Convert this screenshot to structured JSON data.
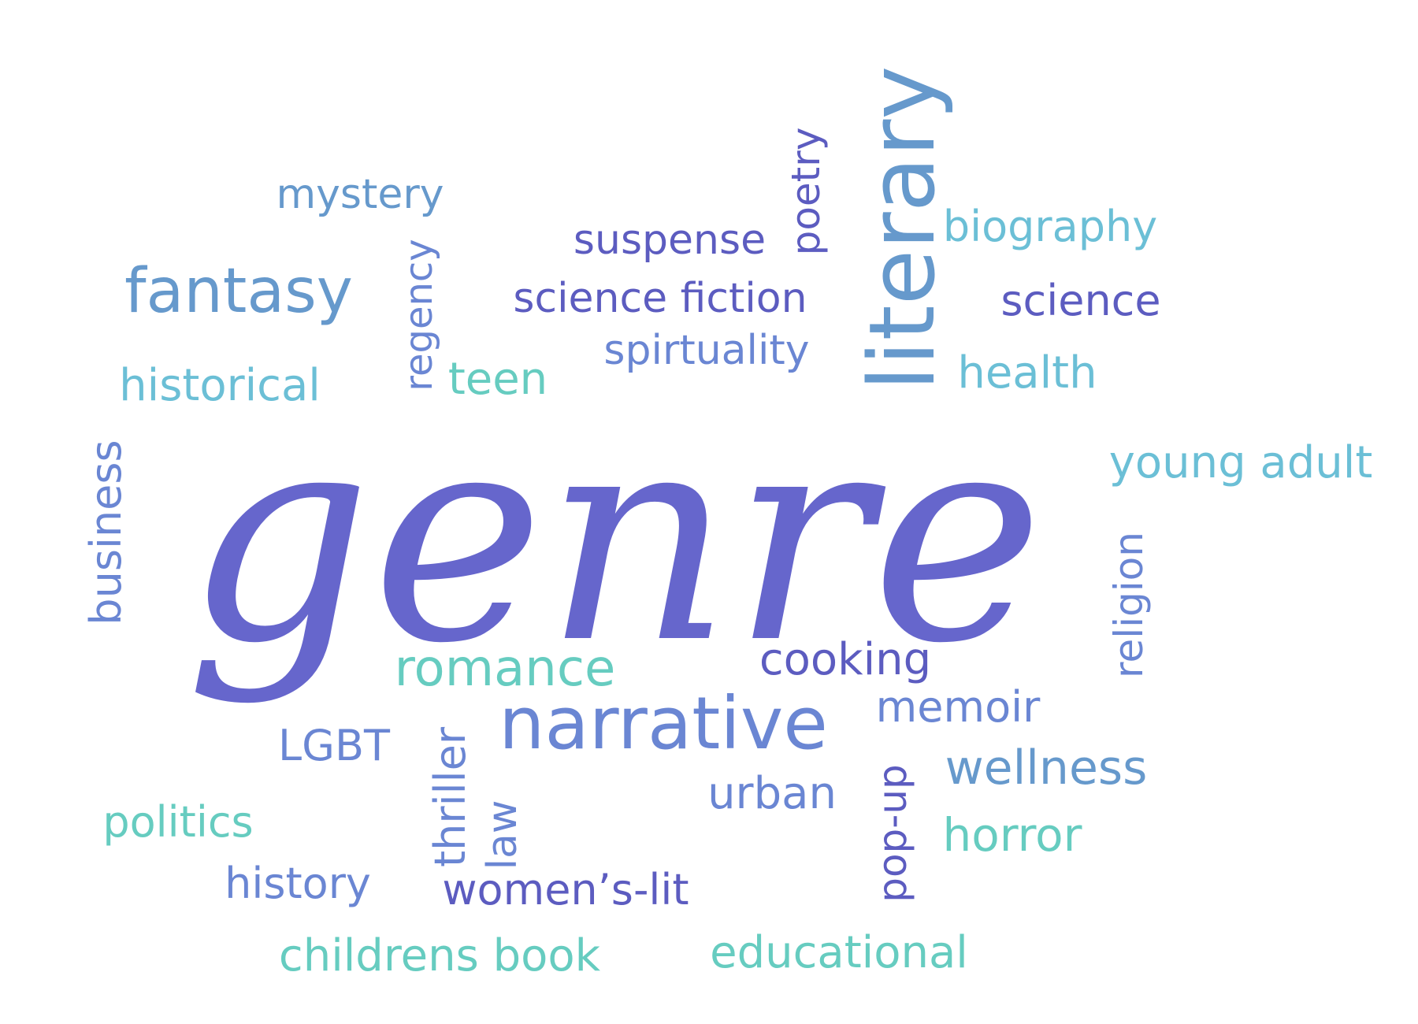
{
  "palette": {
    "indigo": "#6666cc",
    "steel": "#6699cc",
    "blue": "#6a86d3",
    "sky": "#6bbfd6",
    "teal": "#66ccc0",
    "purple": "#5c5cc0"
  },
  "words": [
    {
      "text": "genre",
      "color": "#6666cc"
    },
    {
      "text": "literary",
      "color": "#6699cc"
    },
    {
      "text": "narrative",
      "color": "#6a86d3"
    },
    {
      "text": "fantasy",
      "color": "#6699cc"
    },
    {
      "text": "romance",
      "color": "#66ccc0"
    },
    {
      "text": "mystery",
      "color": "#6699cc"
    },
    {
      "text": "suspense",
      "color": "#5c5cc0"
    },
    {
      "text": "science fiction",
      "color": "#5c5cc0"
    },
    {
      "text": "spirtuality",
      "color": "#6a86d3"
    },
    {
      "text": "poetry",
      "color": "#5c5cc0"
    },
    {
      "text": "regency",
      "color": "#6a86d3"
    },
    {
      "text": "biography",
      "color": "#6bbfd6"
    },
    {
      "text": "science",
      "color": "#5c5cc0"
    },
    {
      "text": "health",
      "color": "#6bbfd6"
    },
    {
      "text": "historical",
      "color": "#6bbfd6"
    },
    {
      "text": "teen",
      "color": "#66ccc0"
    },
    {
      "text": "young adult",
      "color": "#6bbfd6"
    },
    {
      "text": "business",
      "color": "#6a86d3"
    },
    {
      "text": "religion",
      "color": "#6a86d3"
    },
    {
      "text": "cooking",
      "color": "#5c5cc0"
    },
    {
      "text": "memoir",
      "color": "#6a86d3"
    },
    {
      "text": "wellness",
      "color": "#6699cc"
    },
    {
      "text": "LGBT",
      "color": "#6a86d3"
    },
    {
      "text": "thriller",
      "color": "#6a86d3"
    },
    {
      "text": "law",
      "color": "#6a86d3"
    },
    {
      "text": "urban",
      "color": "#6a86d3"
    },
    {
      "text": "pop-up",
      "color": "#5c5cc0"
    },
    {
      "text": "horror",
      "color": "#66ccc0"
    },
    {
      "text": "politics",
      "color": "#66ccc0"
    },
    {
      "text": "history",
      "color": "#6a86d3"
    },
    {
      "text": "women’s-lit",
      "color": "#5c5cc0"
    },
    {
      "text": "childrens book",
      "color": "#66ccc0"
    },
    {
      "text": "educational",
      "color": "#66ccc0"
    }
  ]
}
